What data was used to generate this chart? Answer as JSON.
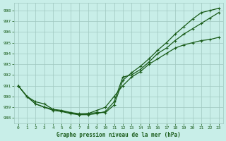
{
  "title": "Graphe pression niveau de la mer (hPa)",
  "background_color": "#c8eee8",
  "grid_color": "#a0c8c0",
  "line_color": "#1a5c1a",
  "xlim": [
    -0.5,
    23.5
  ],
  "ylim": [
    987.5,
    998.7
  ],
  "yticks": [
    988,
    989,
    990,
    991,
    992,
    993,
    994,
    995,
    996,
    997,
    998
  ],
  "xticks": [
    0,
    1,
    2,
    3,
    4,
    5,
    6,
    7,
    8,
    9,
    10,
    11,
    12,
    13,
    14,
    15,
    16,
    17,
    18,
    19,
    20,
    21,
    22,
    23
  ],
  "series": [
    {
      "x": [
        0,
        1,
        2,
        3,
        4,
        5,
        6,
        7,
        8,
        9,
        10,
        11,
        12,
        13,
        14,
        15,
        16,
        17,
        18,
        19,
        20,
        21,
        22,
        23
      ],
      "y": [
        991.0,
        990.0,
        989.5,
        989.3,
        988.8,
        988.7,
        988.5,
        988.4,
        988.4,
        988.5,
        988.5,
        989.2,
        991.5,
        992.2,
        992.8,
        993.5,
        994.3,
        995.0,
        995.8,
        996.5,
        997.2,
        997.8,
        998.0,
        998.2
      ]
    },
    {
      "x": [
        0,
        1,
        2,
        3,
        4,
        5,
        6,
        7,
        8,
        9,
        10,
        11,
        12,
        13,
        14,
        15,
        16,
        17,
        18,
        19,
        20,
        21,
        22,
        23
      ],
      "y": [
        991.0,
        990.0,
        989.3,
        989.0,
        988.7,
        988.6,
        988.4,
        988.3,
        988.3,
        988.4,
        988.6,
        989.5,
        991.8,
        992.0,
        992.5,
        993.2,
        994.0,
        994.5,
        995.2,
        995.8,
        996.3,
        996.8,
        997.3,
        997.8
      ]
    },
    {
      "x": [
        0,
        1,
        2,
        3,
        4,
        5,
        6,
        7,
        8,
        9,
        10,
        11,
        12,
        13,
        14,
        15,
        16,
        17,
        18,
        19,
        20,
        21,
        22,
        23
      ],
      "y": [
        991.0,
        990.0,
        989.3,
        989.0,
        988.8,
        988.6,
        988.5,
        988.3,
        988.4,
        988.7,
        989.0,
        990.0,
        991.0,
        991.8,
        992.3,
        993.0,
        993.5,
        994.0,
        994.5,
        994.8,
        995.0,
        995.2,
        995.3,
        995.5
      ]
    }
  ],
  "marker": "+",
  "marker_size": 3,
  "line_width": 0.9
}
